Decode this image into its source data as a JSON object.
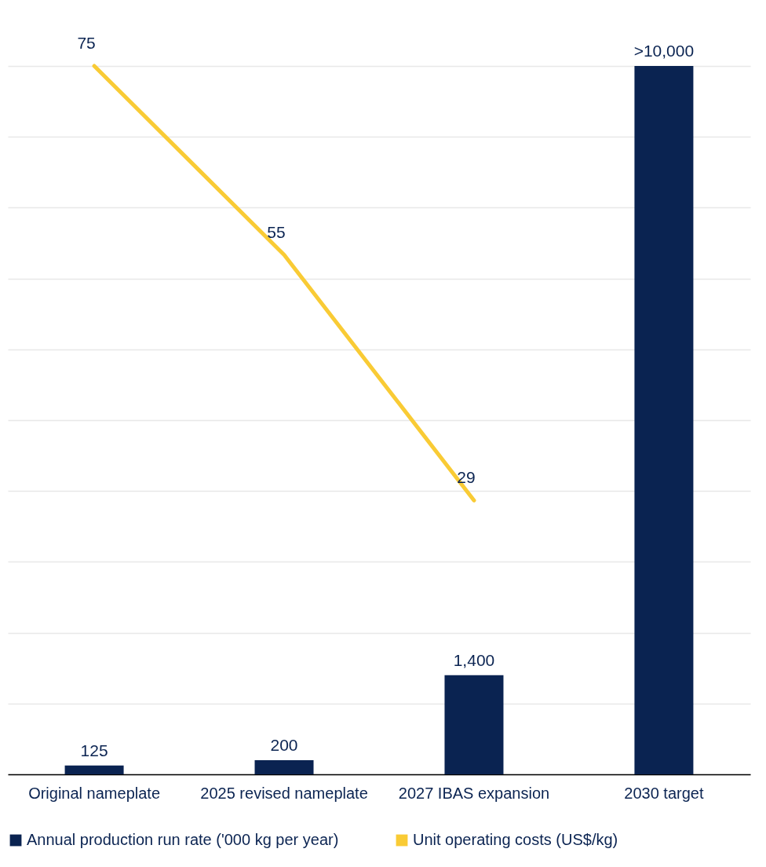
{
  "chart_data": {
    "type": "bar",
    "categories": [
      "Original nameplate",
      "2025 revised nameplate",
      "2027 IBAS expansion",
      "2030 target"
    ],
    "series": [
      {
        "name": "Annual production run rate ('000 kg per year)",
        "color": "#0a2351",
        "values": [
          125,
          200,
          1400,
          10000
        ],
        "value_labels": [
          "125",
          "200",
          "1,400",
          ">10,000"
        ]
      },
      {
        "name": "Unit operating costs (US$/kg)",
        "type": "line",
        "axis": "y2",
        "color": "#f9cb35",
        "values": [
          75,
          55,
          29,
          null
        ],
        "value_labels": [
          "75",
          "55",
          "29",
          null
        ]
      }
    ],
    "grid": true,
    "legend": "bottom",
    "tick_labels": "x",
    "line_style": "solid",
    "marker": "none"
  }
}
